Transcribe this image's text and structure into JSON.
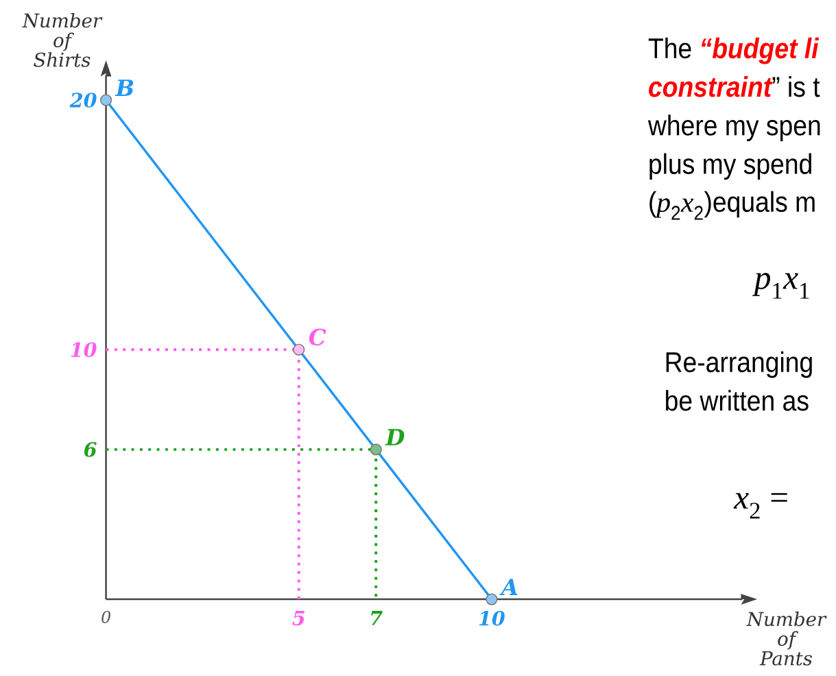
{
  "chart_data": [
    {
      "type": "line",
      "xlabel": "Number of Pants",
      "ylabel": "Number of Shirts",
      "xlim": [
        0,
        16.5
      ],
      "ylim": [
        0,
        21
      ],
      "xticks": [
        0,
        5,
        7,
        10
      ],
      "yticks": [
        6,
        10,
        20
      ],
      "series": [
        {
          "type": "line",
          "line_style": "dotted",
          "color": "#ff5cf0",
          "x": [
            0,
            5,
            5
          ],
          "values": [
            10,
            10,
            0
          ]
        },
        {
          "type": "line",
          "line_style": "dotted",
          "color": "#1fa21f",
          "x": [
            0,
            7,
            7
          ],
          "values": [
            6,
            6,
            0
          ]
        },
        {
          "type": "line",
          "line_style": "solid",
          "color": "#2196f3",
          "x": [
            0,
            5,
            7,
            10
          ],
          "values": [
            20,
            10,
            6,
            0
          ]
        },
        {
          "type": "scatter",
          "marker": "circle",
          "x": [
            0,
            5,
            7,
            10
          ],
          "values": [
            20,
            10,
            6,
            0
          ],
          "colors": [
            "#8dc6f2",
            "#f8bdf0",
            "#7dbd88",
            "#8dc6f2"
          ]
        }
      ],
      "annotations": [
        {
          "text": "B",
          "x": 0,
          "y": 20
        },
        {
          "text": "C",
          "x": 5,
          "y": 10
        },
        {
          "text": "D",
          "x": 7,
          "y": 6
        },
        {
          "text": "A",
          "x": 10,
          "y": 0
        }
      ]
    },
    {
      "type": "other",
      "annotations": [
        "The **“budget li**",
        "**constraint**” is t",
        "where my spen",
        "plus my spend",
        "(*p*$_{2}$*x*$_{2}$)equals m",
        "*p*$_{1}$*x*$_{1}$",
        "Re-arranging",
        "be written as",
        "*x*$_{2}$ ="
      ]
    }
  ]
}
